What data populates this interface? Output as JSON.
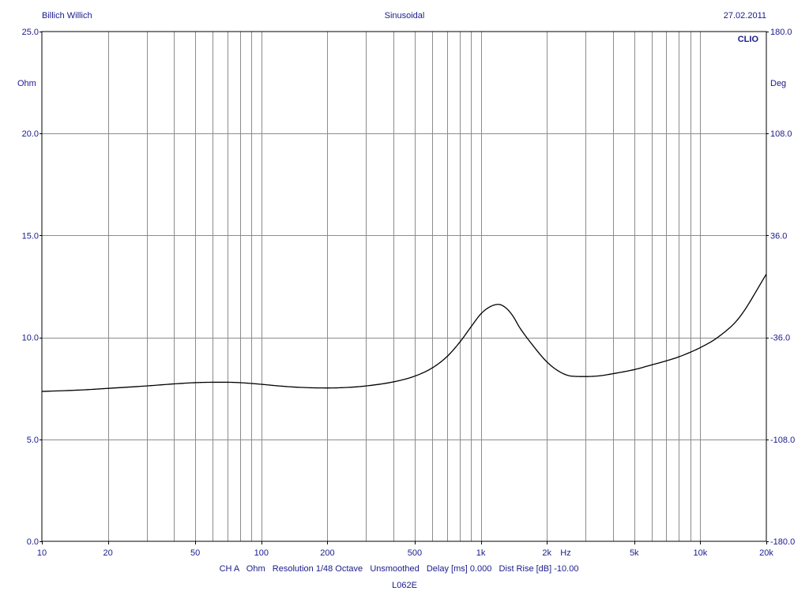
{
  "header": {
    "author": "Billich Willich",
    "mode": "Sinusoidal",
    "date": "27.02.2011",
    "brand": "CLIO"
  },
  "footer": {
    "info_line": "CH A   Ohm   Resolution 1/48 Octave   Unsmoothed   Delay [ms] 0.000   Dist Rise [dB] -10.00",
    "file_name": "L062E"
  },
  "colors": {
    "text": "#1a1a8c",
    "grid": "#8c8c8c",
    "trace": "#000000",
    "background": "#ffffff"
  },
  "chart_data": {
    "type": "line",
    "x_scale": "log",
    "xlim": [
      10,
      20000
    ],
    "ylim": [
      0,
      25
    ],
    "ylim_right": [
      -180,
      180
    ],
    "ylabel": "Ohm",
    "ylabel_right": "Deg",
    "xlabel": "Hz",
    "grid": true,
    "x_tick_labels": [
      {
        "value": 10,
        "label": "10"
      },
      {
        "value": 20,
        "label": "20"
      },
      {
        "value": 50,
        "label": "50"
      },
      {
        "value": 100,
        "label": "100"
      },
      {
        "value": 200,
        "label": "200"
      },
      {
        "value": 500,
        "label": "500"
      },
      {
        "value": 1000,
        "label": "1k"
      },
      {
        "value": 2000,
        "label": "2k"
      },
      {
        "value": 5000,
        "label": "5k"
      },
      {
        "value": 10000,
        "label": "10k"
      },
      {
        "value": 20000,
        "label": "20k"
      }
    ],
    "y_ticks_left": [
      "0.0",
      "5.0",
      "10.0",
      "15.0",
      "20.0",
      "25.0"
    ],
    "y_ticks_right": [
      "-180.0",
      "-108.0",
      "-36.0",
      "36.0",
      "108.0",
      "180.0"
    ],
    "series": [
      {
        "color": "#000000",
        "x": [
          10,
          15,
          20,
          30,
          40,
          50,
          60,
          70,
          80,
          100,
          120,
          150,
          200,
          250,
          300,
          400,
          500,
          600,
          700,
          800,
          900,
          1000,
          1100,
          1200,
          1300,
          1400,
          1500,
          1700,
          2000,
          2300,
          2600,
          3000,
          3500,
          4000,
          5000,
          6000,
          7000,
          8000,
          10000,
          12000,
          15000,
          20000
        ],
        "values": [
          7.35,
          7.42,
          7.5,
          7.62,
          7.72,
          7.78,
          7.8,
          7.8,
          7.78,
          7.7,
          7.62,
          7.55,
          7.52,
          7.55,
          7.62,
          7.82,
          8.1,
          8.5,
          9.05,
          9.75,
          10.5,
          11.15,
          11.5,
          11.62,
          11.45,
          11.05,
          10.5,
          9.7,
          8.8,
          8.3,
          8.1,
          8.08,
          8.12,
          8.22,
          8.42,
          8.65,
          8.85,
          9.05,
          9.5,
          10.0,
          10.95,
          13.1
        ]
      }
    ]
  }
}
